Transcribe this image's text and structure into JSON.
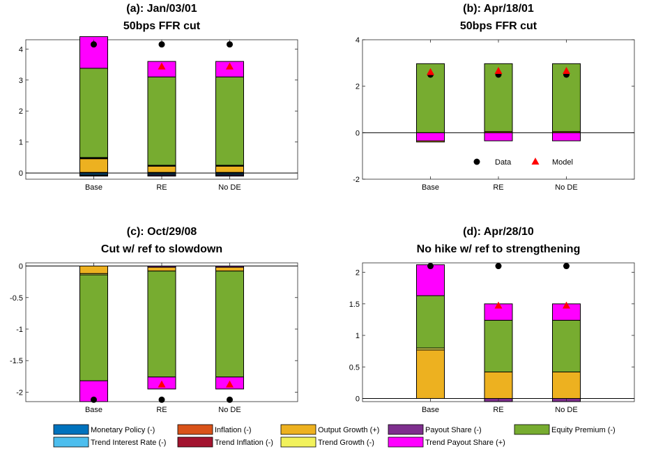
{
  "chart_data": [
    {
      "type": "bar",
      "stacked": true,
      "title": "(a): Jan/03/01",
      "subtitle": "50bps FFR cut",
      "categories": [
        "Base",
        "RE",
        "No DE"
      ],
      "ylim": [
        -0.2,
        4.3
      ],
      "yticks": [
        0,
        1,
        2,
        3,
        4
      ],
      "ytick_labels": [
        "0",
        "1",
        "2",
        "3",
        "4"
      ],
      "grid": false,
      "segments": [
        [
          {
            "component": "Monetary Policy (-)",
            "value": -0.05
          },
          {
            "component": "Trend Interest Rate (-)",
            "value": -0.03
          },
          {
            "component": "Payout Share (-)",
            "value": -0.02
          },
          {
            "component": "Inflation (-)",
            "value": 0.02
          },
          {
            "component": "Output Growth (+)",
            "value": 0.44
          },
          {
            "component": "Trend Inflation (-)",
            "value": 0.02
          },
          {
            "component": "Trend Growth (-)",
            "value": 0.02
          },
          {
            "component": "Equity Premium (-)",
            "value": 2.88
          },
          {
            "component": "Trend Payout Share (+)",
            "value": 1.02
          }
        ],
        [
          {
            "component": "Monetary Policy (-)",
            "value": -0.04
          },
          {
            "component": "Trend Interest Rate (-)",
            "value": -0.03
          },
          {
            "component": "Payout Share (-)",
            "value": -0.03
          },
          {
            "component": "Inflation (-)",
            "value": 0.02
          },
          {
            "component": "Output Growth (+)",
            "value": 0.2
          },
          {
            "component": "Trend Inflation (-)",
            "value": 0.01
          },
          {
            "component": "Trend Growth (-)",
            "value": 0.02
          },
          {
            "component": "Equity Premium (-)",
            "value": 2.85
          },
          {
            "component": "Trend Payout Share (+)",
            "value": 0.5
          }
        ],
        [
          {
            "component": "Monetary Policy (-)",
            "value": -0.04
          },
          {
            "component": "Trend Interest Rate (-)",
            "value": -0.03
          },
          {
            "component": "Payout Share (-)",
            "value": -0.03
          },
          {
            "component": "Inflation (-)",
            "value": 0.02
          },
          {
            "component": "Output Growth (+)",
            "value": 0.2
          },
          {
            "component": "Trend Inflation (-)",
            "value": 0.01
          },
          {
            "component": "Trend Growth (-)",
            "value": 0.02
          },
          {
            "component": "Equity Premium (-)",
            "value": 2.85
          },
          {
            "component": "Trend Payout Share (+)",
            "value": 0.5
          }
        ]
      ],
      "data_points": [
        4.15,
        4.15,
        4.15
      ],
      "model_points": [
        null,
        3.43,
        3.43
      ]
    },
    {
      "type": "bar",
      "stacked": true,
      "title": "(b): Apr/18/01",
      "subtitle": "50bps FFR cut",
      "categories": [
        "Base",
        "RE",
        "No DE"
      ],
      "ylim": [
        -2,
        4
      ],
      "yticks": [
        -2,
        0,
        2,
        4
      ],
      "ytick_labels": [
        "-2",
        "0",
        "2",
        "4"
      ],
      "grid": false,
      "legend": {
        "position": "bottom",
        "entries": [
          "Data",
          "Model"
        ]
      },
      "segments": [
        [
          {
            "component": "Trend Payout Share (+)",
            "value": -0.35
          },
          {
            "component": "Output Growth (+)",
            "value": -0.05
          },
          {
            "component": "Equity Premium (-)",
            "value": 2.97
          }
        ],
        [
          {
            "component": "Trend Payout Share (+)",
            "value": -0.35
          },
          {
            "component": "Output Growth (+)",
            "value": 0.05
          },
          {
            "component": "Equity Premium (-)",
            "value": 2.92
          }
        ],
        [
          {
            "component": "Trend Payout Share (+)",
            "value": -0.35
          },
          {
            "component": "Output Growth (+)",
            "value": 0.05
          },
          {
            "component": "Equity Premium (-)",
            "value": 2.92
          }
        ]
      ],
      "data_points": [
        2.5,
        2.5,
        2.5
      ],
      "model_points": [
        2.6,
        2.65,
        2.65
      ]
    },
    {
      "type": "bar",
      "stacked": true,
      "title": "(c): Oct/29/08",
      "subtitle": "Cut w/ ref to slowdown",
      "categories": [
        "Base",
        "RE",
        "No DE"
      ],
      "ylim": [
        -2.15,
        0.05
      ],
      "yticks": [
        0,
        -0.5,
        -1,
        -1.5,
        -2
      ],
      "ytick_labels": [
        "0",
        "-0.5",
        "-1",
        "-1.5",
        "-2"
      ],
      "grid": false,
      "segments": [
        [
          {
            "component": "Output Growth (+)",
            "value": -0.12
          },
          {
            "component": "Trend Growth (-)",
            "value": -0.02
          },
          {
            "component": "Equity Premium (-)",
            "value": -1.68
          },
          {
            "component": "Trend Payout Share (+)",
            "value": -0.33
          }
        ],
        [
          {
            "component": "Payout Share (-)",
            "value": -0.02
          },
          {
            "component": "Output Growth (+)",
            "value": -0.06
          },
          {
            "component": "Equity Premium (-)",
            "value": -1.68
          },
          {
            "component": "Trend Payout Share (+)",
            "value": -0.19
          }
        ],
        [
          {
            "component": "Payout Share (-)",
            "value": -0.02
          },
          {
            "component": "Output Growth (+)",
            "value": -0.06
          },
          {
            "component": "Equity Premium (-)",
            "value": -1.68
          },
          {
            "component": "Trend Payout Share (+)",
            "value": -0.19
          }
        ]
      ],
      "data_points": [
        -2.12,
        -2.12,
        -2.12
      ],
      "model_points": [
        null,
        -1.88,
        -1.88
      ]
    },
    {
      "type": "bar",
      "stacked": true,
      "title": "(d): Apr/28/10",
      "subtitle": "No hike w/ ref to strengthening",
      "categories": [
        "Base",
        "RE",
        "No DE"
      ],
      "ylim": [
        -0.05,
        2.15
      ],
      "yticks": [
        0,
        0.5,
        1,
        1.5,
        2
      ],
      "ytick_labels": [
        "0",
        "0.5",
        "1",
        "1.5",
        "2"
      ],
      "grid": false,
      "segments": [
        [
          {
            "component": "Output Growth (+)",
            "value": 0.77
          },
          {
            "component": "Trend Growth (-)",
            "value": 0.03
          },
          {
            "component": "Equity Premium (-)",
            "value": 0.83
          },
          {
            "component": "Trend Payout Share (+)",
            "value": 0.49
          }
        ],
        [
          {
            "component": "Payout Share (-)",
            "value": -0.05
          },
          {
            "component": "Output Growth (+)",
            "value": 0.42
          },
          {
            "component": "Equity Premium (-)",
            "value": 0.82
          },
          {
            "component": "Trend Payout Share (+)",
            "value": 0.26
          }
        ],
        [
          {
            "component": "Payout Share (-)",
            "value": -0.05
          },
          {
            "component": "Output Growth (+)",
            "value": 0.42
          },
          {
            "component": "Equity Premium (-)",
            "value": 0.82
          },
          {
            "component": "Trend Payout Share (+)",
            "value": 0.26
          }
        ]
      ],
      "data_points": [
        2.1,
        2.1,
        2.1
      ],
      "model_points": [
        null,
        1.47,
        1.47
      ]
    }
  ],
  "legend": {
    "items": [
      {
        "label": "Monetary Policy (-)",
        "color": "#0072BD"
      },
      {
        "label": "Trend Interest Rate (-)",
        "color": "#4DBEEE"
      },
      {
        "label": "Inflation (-)",
        "color": "#D95319"
      },
      {
        "label": "Trend Inflation (-)",
        "color": "#A2142F"
      },
      {
        "label": "Output Growth (+)",
        "color": "#EDB120"
      },
      {
        "label": "Trend Growth (-)",
        "color": "#F2F25C"
      },
      {
        "label": "Payout Share (-)",
        "color": "#7E2F8E"
      },
      {
        "label": "Trend Payout Share (+)",
        "color": "#FF00FF"
      },
      {
        "label": "Equity Premium (-)",
        "color": "#77AC30"
      }
    ]
  },
  "marker_colors": {
    "data": "#000000",
    "model": "#FF0000"
  }
}
